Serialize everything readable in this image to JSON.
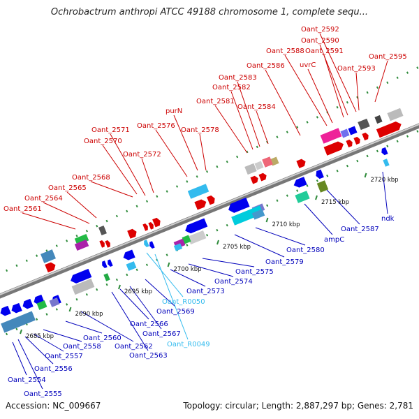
{
  "header": {
    "title": "Ochrobactrum anthropi ATCC 49188 chromosome 1, complete sequ..."
  },
  "footer": {
    "accession": "Accession: NC_009667",
    "summary": "Topology: circular; Length: 2,887,297 bp; Genes: 2,781"
  },
  "colors": {
    "forward_label": "#cc0000",
    "reverse_label": "#0000bb",
    "rna_label": "#33bbee",
    "backbone": "#888888"
  },
  "ticks": [
    {
      "label": "2685 kbp",
      "pos": 2685
    },
    {
      "label": "2690 kbp",
      "pos": 2690
    },
    {
      "label": "2695 kbp",
      "pos": 2695
    },
    {
      "label": "2700 kbp",
      "pos": 2700
    },
    {
      "label": "2705 kbp",
      "pos": 2705
    },
    {
      "label": "2710 kbp",
      "pos": 2710
    },
    {
      "label": "2715 kbp",
      "pos": 2715
    },
    {
      "label": "2720 kbp",
      "pos": 2720
    }
  ],
  "forward_genes": [
    {
      "name": "Oant_2561"
    },
    {
      "name": "Oant_2564"
    },
    {
      "name": "Oant_2565"
    },
    {
      "name": "Oant_2568"
    },
    {
      "name": "Oant_2570"
    },
    {
      "name": "Oant_2571"
    },
    {
      "name": "Oant_2572"
    },
    {
      "name": "Oant_2576"
    },
    {
      "name": "purN"
    },
    {
      "name": "Oant_2578"
    },
    {
      "name": "Oant_2581"
    },
    {
      "name": "Oant_2582"
    },
    {
      "name": "Oant_2583"
    },
    {
      "name": "Oant_2584"
    },
    {
      "name": "Oant_2586"
    },
    {
      "name": "Oant_2588"
    },
    {
      "name": "uvrC"
    },
    {
      "name": "Oant_2591"
    },
    {
      "name": "Oant_2590"
    },
    {
      "name": "Oant_2592"
    },
    {
      "name": "Oant_2593"
    },
    {
      "name": "Oant_2595"
    }
  ],
  "reverse_genes": [
    {
      "name": "Oant_2554"
    },
    {
      "name": "Oant_2555"
    },
    {
      "name": "Oant_2556"
    },
    {
      "name": "Oant_2557"
    },
    {
      "name": "Oant_2558"
    },
    {
      "name": "Oant_2560"
    },
    {
      "name": "Oant_2562"
    },
    {
      "name": "Oant_2563"
    },
    {
      "name": "Oant_2566"
    },
    {
      "name": "Oant_2567"
    },
    {
      "name": "Oant_2569"
    },
    {
      "name": "Oant_2573"
    },
    {
      "name": "Oant_2574"
    },
    {
      "name": "Oant_2575"
    },
    {
      "name": "Oant_2579"
    },
    {
      "name": "Oant_2580"
    },
    {
      "name": "ampC"
    },
    {
      "name": "Oant_2587"
    },
    {
      "name": "ndk"
    }
  ],
  "rna_genes": [
    {
      "name": "Oant_R0050"
    },
    {
      "name": "Oant_R0049"
    }
  ]
}
